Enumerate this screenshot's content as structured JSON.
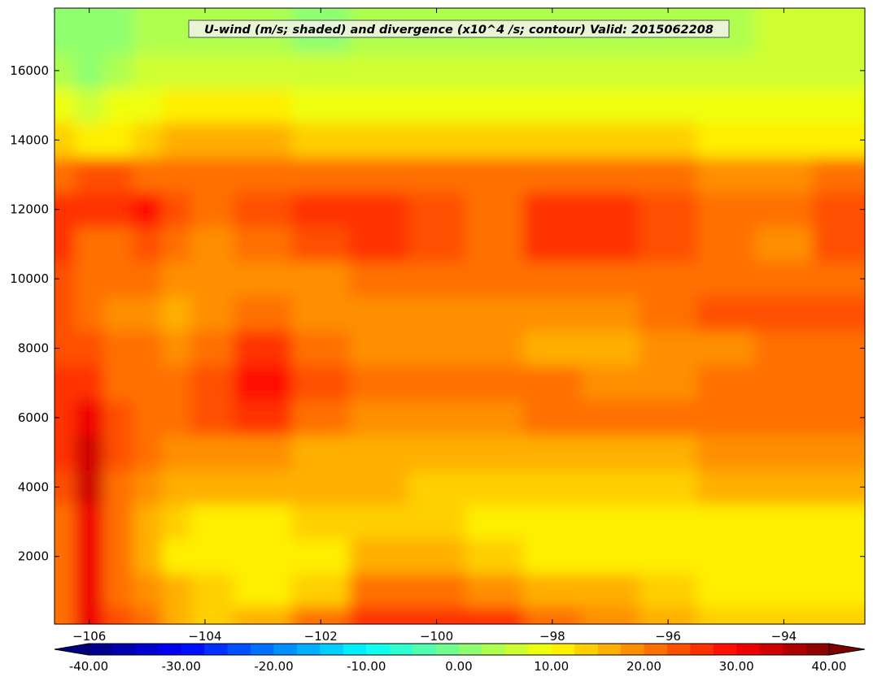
{
  "chart_data": {
    "type": "heatmap",
    "title": "U-wind (m/s; shaded) and divergence (x10^4 /s; contour) Valid: 2015062208",
    "xlabel": "",
    "ylabel": "",
    "xlim": [
      -106.6,
      -92.6
    ],
    "ylim": [
      50,
      17800
    ],
    "x_ticks": [
      -106,
      -104,
      -102,
      -100,
      -98,
      -96,
      -94
    ],
    "x_tick_labels": [
      "−106",
      "−104",
      "−102",
      "−100",
      "−98",
      "−96",
      "−94"
    ],
    "y_ticks": [
      2000,
      4000,
      6000,
      8000,
      10000,
      12000,
      14000,
      16000
    ],
    "y_tick_labels": [
      "2000",
      "4000",
      "6000",
      "8000",
      "10000",
      "12000",
      "14000",
      "16000"
    ],
    "colorbar": {
      "min": -40,
      "max": 40,
      "step": 2.5,
      "extend": "both",
      "colormap": "jet",
      "tick_values": [
        -40,
        -30,
        -20,
        -10,
        0,
        10,
        20,
        30,
        40
      ],
      "tick_labels": [
        "-40.00",
        "-30.00",
        "-20.00",
        "-10.00",
        "0.00",
        "10.00",
        "20.00",
        "30.00",
        "40.00"
      ]
    },
    "field": {
      "description_x": [
        -106.5,
        -106,
        -105.5,
        -105,
        -104.5,
        -104,
        -103,
        -102,
        -101,
        -100,
        -99,
        -98,
        -97,
        -96,
        -95,
        -94,
        -93
      ],
      "description_y": [
        100,
        1000,
        2000,
        3000,
        4000,
        5000,
        6000,
        7000,
        8000,
        9000,
        10000,
        11000,
        12000,
        13000,
        14000,
        15000,
        16000,
        17000
      ],
      "values": [
        [
          22,
          32,
          24,
          20,
          16,
          14,
          16,
          20,
          25,
          26,
          25,
          22,
          18,
          16,
          14,
          14,
          14
        ],
        [
          21,
          31,
          22,
          18,
          15,
          13,
          12,
          14,
          22,
          21,
          19,
          17,
          15,
          13,
          12,
          12,
          12
        ],
        [
          21,
          31,
          20,
          15,
          12,
          10,
          10,
          11,
          16,
          15,
          14,
          12,
          11,
          10,
          10,
          11,
          11
        ],
        [
          22,
          32,
          20,
          16,
          13,
          12,
          12,
          13,
          14,
          13,
          12,
          11,
          10,
          10,
          11,
          11,
          12
        ],
        [
          24,
          33,
          21,
          18,
          17,
          16,
          15,
          15,
          15,
          14,
          14,
          13,
          13,
          14,
          15,
          15,
          15
        ],
        [
          26,
          33,
          23,
          20,
          19,
          18,
          18,
          17,
          17,
          16,
          16,
          17,
          17,
          17,
          18,
          18,
          18
        ],
        [
          26,
          31,
          23,
          22,
          21,
          23,
          27,
          22,
          19,
          19,
          19,
          21,
          21,
          20,
          21,
          21,
          21
        ],
        [
          25,
          27,
          22,
          21,
          21,
          23,
          29,
          24,
          20,
          20,
          20,
          20,
          19,
          19,
          20,
          21,
          21
        ],
        [
          24,
          23,
          20,
          20,
          19,
          20,
          25,
          21,
          19,
          19,
          18,
          17,
          17,
          18,
          19,
          22,
          22
        ],
        [
          24,
          21,
          19,
          19,
          17,
          18,
          20,
          19,
          18,
          18,
          18,
          18,
          19,
          21,
          23,
          24,
          24
        ],
        [
          24,
          21,
          20,
          20,
          18,
          18,
          19,
          19,
          20,
          21,
          21,
          21,
          21,
          22,
          22,
          21,
          22
        ],
        [
          25,
          22,
          22,
          23,
          20,
          19,
          21,
          24,
          25,
          23,
          22,
          25,
          25,
          24,
          21,
          19,
          23
        ],
        [
          27,
          26,
          26,
          29,
          23,
          20,
          23,
          25,
          27,
          24,
          22,
          26,
          26,
          24,
          22,
          21,
          24
        ],
        [
          21,
          24,
          23,
          22,
          20,
          22,
          22,
          22,
          21,
          20,
          20,
          21,
          21,
          20,
          19,
          19,
          20
        ],
        [
          13,
          12,
          12,
          13,
          15,
          16,
          15,
          14,
          13,
          13,
          13,
          13,
          13,
          13,
          12,
          12,
          12
        ],
        [
          9,
          6,
          8,
          9,
          11,
          10,
          10,
          9,
          9,
          9,
          9,
          9,
          9,
          9,
          9,
          9,
          9
        ],
        [
          4,
          2,
          4,
          5,
          6,
          6,
          6,
          6,
          5,
          6,
          6,
          6,
          6,
          6,
          6,
          6,
          6
        ],
        [
          2,
          1,
          2,
          3,
          4,
          4,
          3,
          2,
          3,
          3,
          3,
          4,
          4,
          4,
          4,
          5,
          5
        ]
      ]
    }
  }
}
